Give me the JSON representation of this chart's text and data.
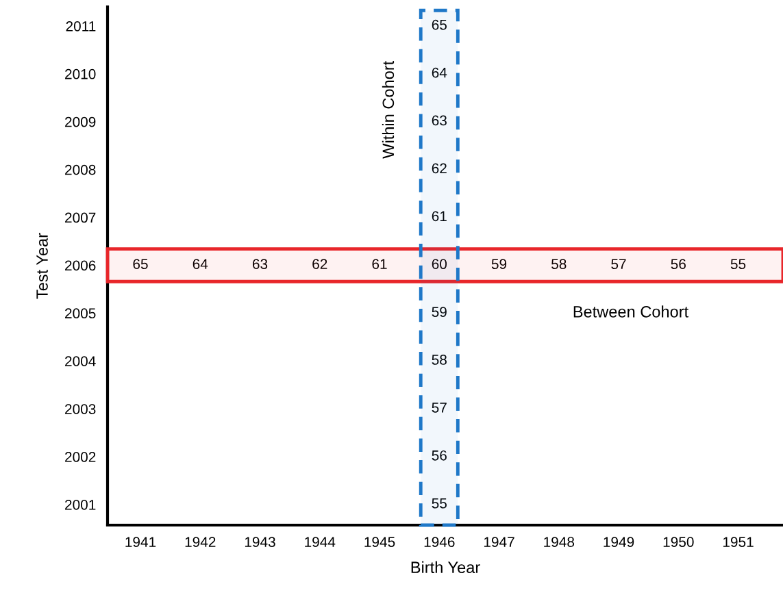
{
  "chart_data": {
    "type": "heatmap",
    "xlabel": "Birth Year",
    "ylabel": "Test Year",
    "categories": [
      "1941",
      "1942",
      "1943",
      "1944",
      "1945",
      "1946",
      "1947",
      "1948",
      "1949",
      "1950",
      "1951"
    ],
    "y_categories": [
      "2011",
      "2010",
      "2009",
      "2008",
      "2007",
      "2006",
      "2005",
      "2004",
      "2003",
      "2002",
      "2001"
    ],
    "cells": [
      [
        null,
        null,
        null,
        null,
        null,
        65,
        null,
        null,
        null,
        null,
        null
      ],
      [
        null,
        null,
        null,
        null,
        null,
        64,
        null,
        null,
        null,
        null,
        null
      ],
      [
        null,
        null,
        null,
        null,
        null,
        63,
        null,
        null,
        null,
        null,
        null
      ],
      [
        null,
        null,
        null,
        null,
        null,
        62,
        null,
        null,
        null,
        null,
        null
      ],
      [
        null,
        null,
        null,
        null,
        null,
        61,
        null,
        null,
        null,
        null,
        null
      ],
      [
        65,
        64,
        63,
        62,
        61,
        60,
        59,
        58,
        57,
        56,
        55
      ],
      [
        null,
        null,
        null,
        null,
        null,
        59,
        null,
        null,
        null,
        null,
        null
      ],
      [
        null,
        null,
        null,
        null,
        null,
        58,
        null,
        null,
        null,
        null,
        null
      ],
      [
        null,
        null,
        null,
        null,
        null,
        57,
        null,
        null,
        null,
        null,
        null
      ],
      [
        null,
        null,
        null,
        null,
        null,
        56,
        null,
        null,
        null,
        null,
        null
      ],
      [
        null,
        null,
        null,
        null,
        null,
        55,
        null,
        null,
        null,
        null,
        null
      ]
    ],
    "bands": [
      {
        "axis": "y",
        "from": "2006",
        "to": "2006",
        "label": "Between Cohort",
        "color": "#e8262a"
      },
      {
        "axis": "x",
        "from": "1946",
        "to": "1946",
        "label": "Within Cohort",
        "color": "#1f78c8"
      }
    ],
    "data_labels": true
  }
}
